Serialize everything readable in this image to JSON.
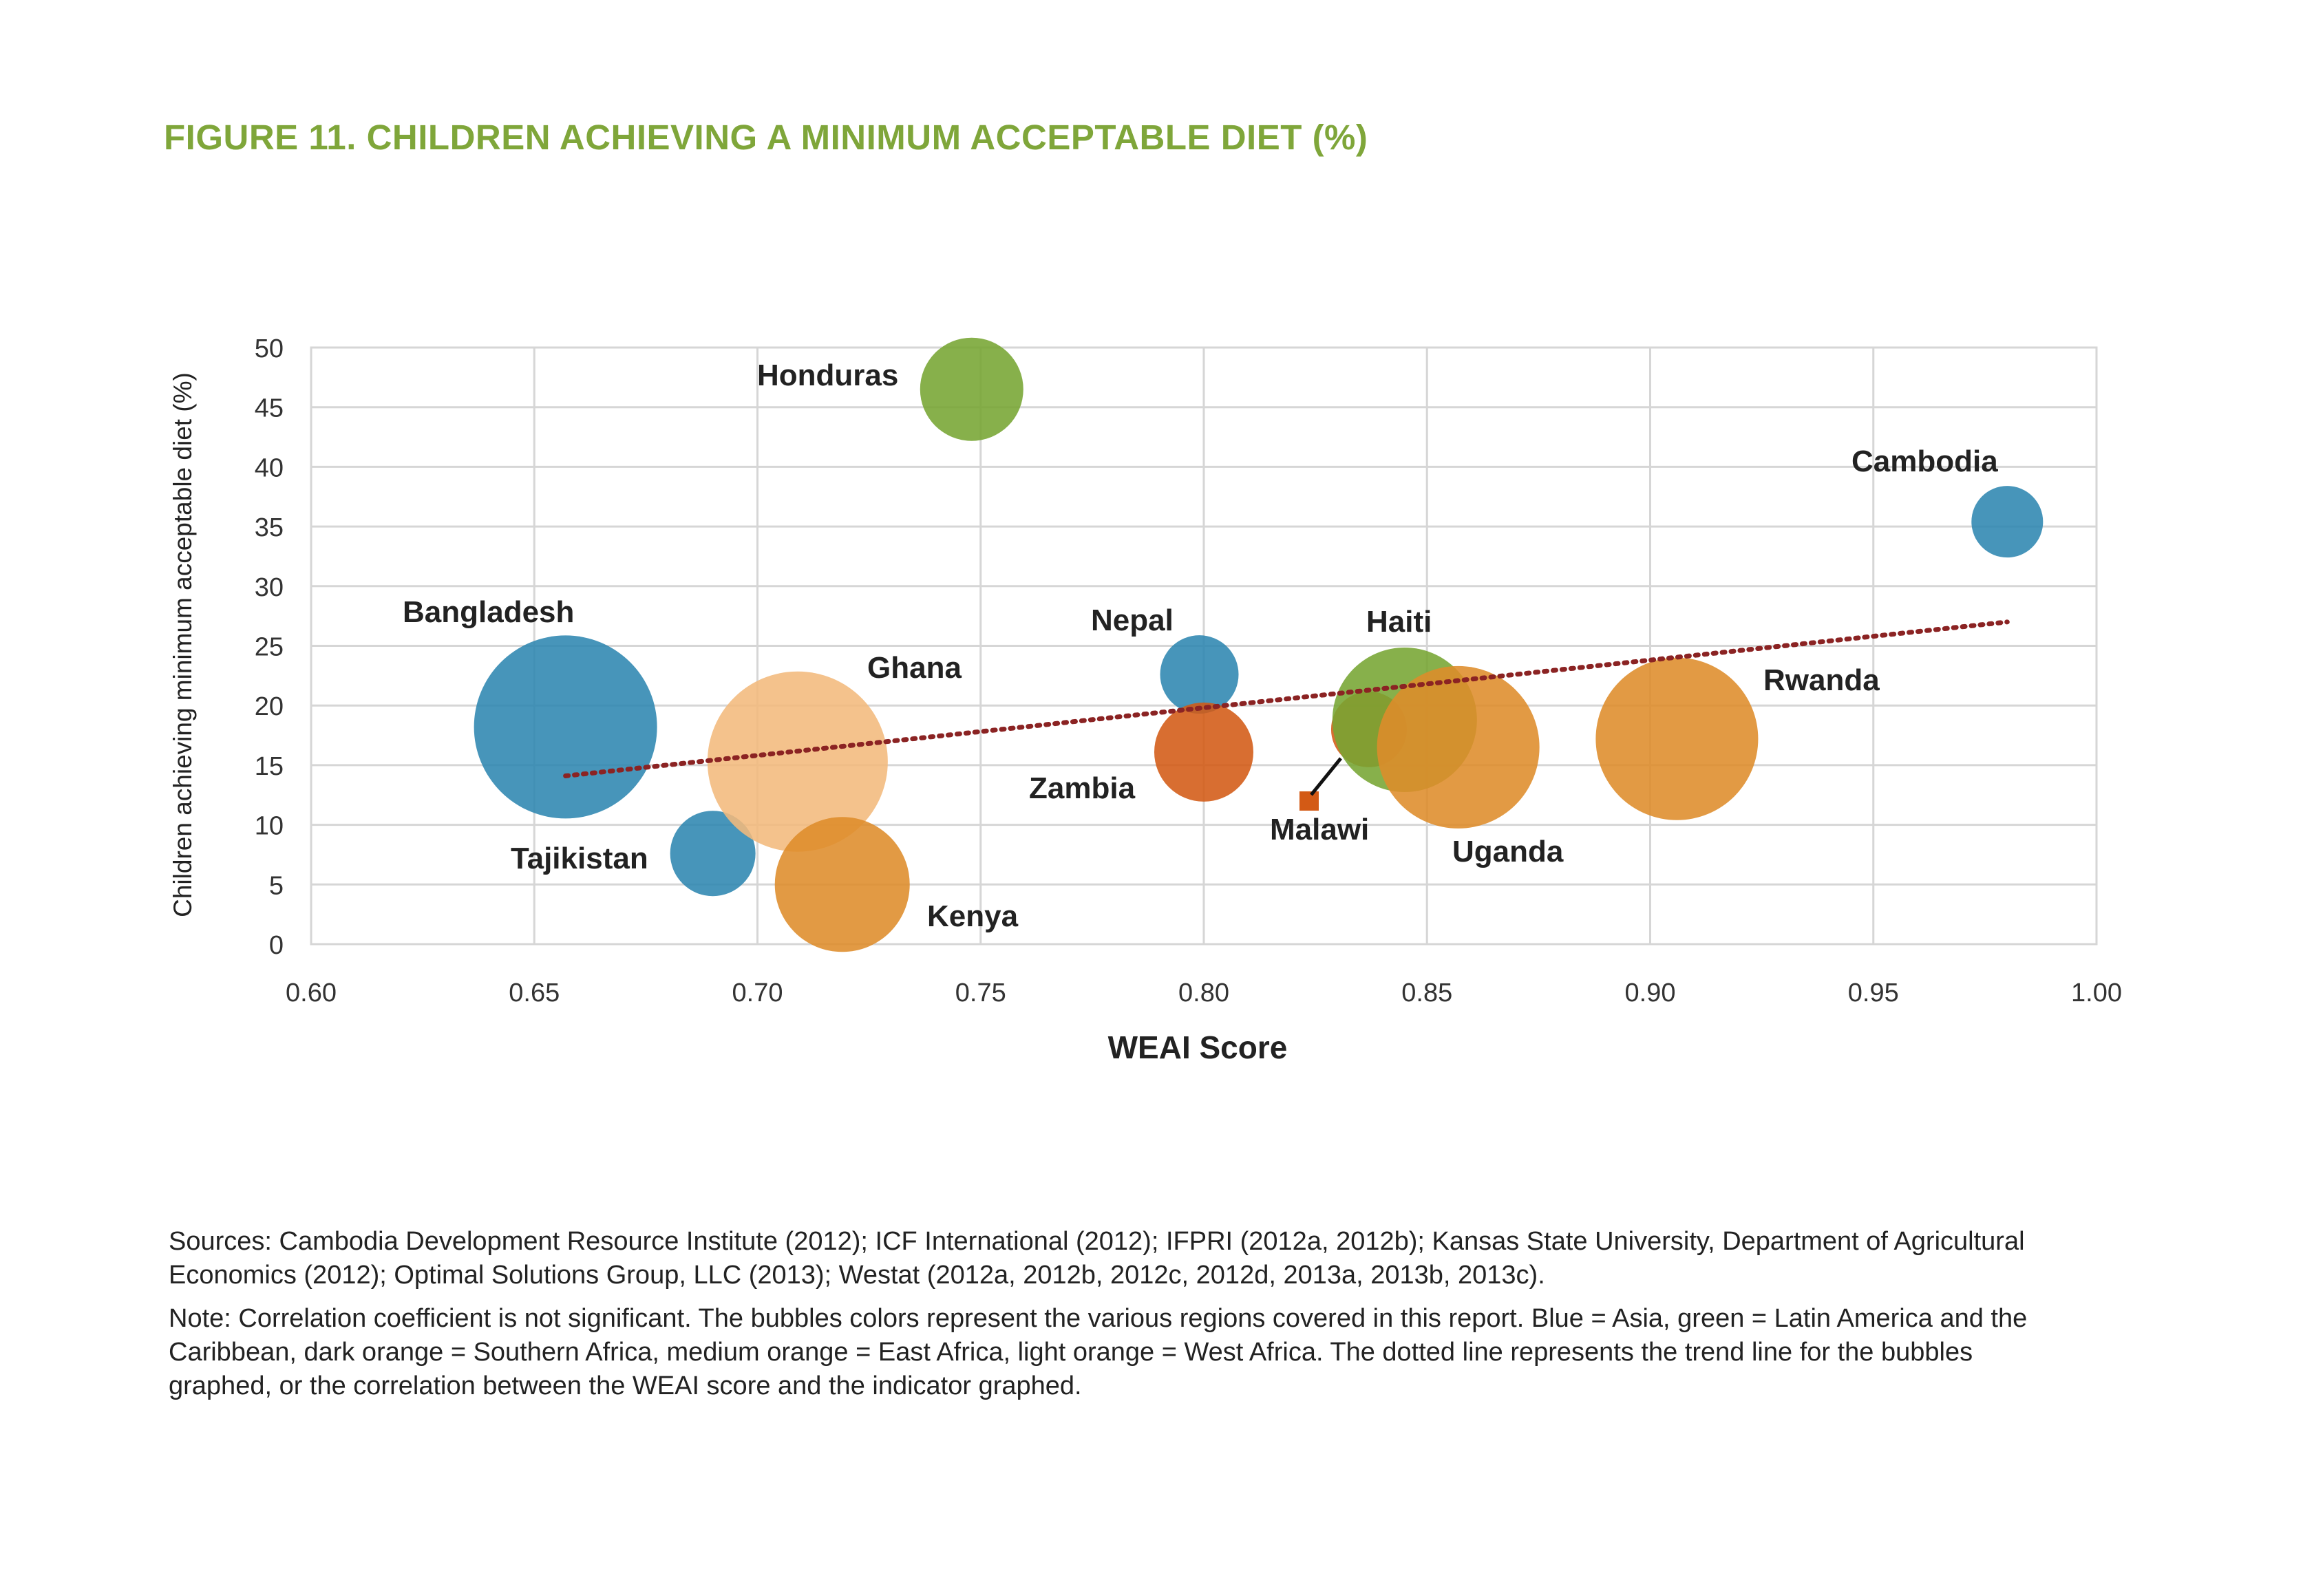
{
  "figure": {
    "title": "FIGURE 11. CHILDREN ACHIEVING A MINIMUM ACCEPTABLE DIET (%)"
  },
  "colors": {
    "title": "#7fa63a",
    "asia": "#2e86b1",
    "latin_america": "#76a532",
    "southern_africa": "#d35a15",
    "east_africa": "#de8c2a",
    "west_africa": "#f2b97c",
    "trend": "#8b2323",
    "grid": "#d6d6d6"
  },
  "chart_data": {
    "type": "scatter",
    "variant": "bubble",
    "xlabel": "WEAI Score",
    "ylabel": "Children achieving minimum acceptable diet (%)",
    "xlim": [
      0.6,
      1.0
    ],
    "ylim": [
      0,
      50
    ],
    "x_ticks": [
      "0.60",
      "0.65",
      "0.70",
      "0.75",
      "0.80",
      "0.85",
      "0.90",
      "0.95",
      "1.00"
    ],
    "y_ticks": [
      "0",
      "5",
      "10",
      "15",
      "20",
      "25",
      "30",
      "35",
      "40",
      "45",
      "50"
    ],
    "grid": true,
    "points": [
      {
        "label": "Bangladesh",
        "x": 0.657,
        "y": 18.2,
        "region": "asia"
      },
      {
        "label": "Tajikistan",
        "x": 0.69,
        "y": 7.6,
        "region": "asia"
      },
      {
        "label": "Ghana",
        "x": 0.709,
        "y": 15.3,
        "region": "west_africa"
      },
      {
        "label": "Kenya",
        "x": 0.719,
        "y": 5.0,
        "region": "east_africa"
      },
      {
        "label": "Honduras",
        "x": 0.748,
        "y": 46.5,
        "region": "latin_america"
      },
      {
        "label": "Nepal",
        "x": 0.799,
        "y": 22.6,
        "region": "asia"
      },
      {
        "label": "Zambia",
        "x": 0.8,
        "y": 16.1,
        "region": "southern_africa"
      },
      {
        "label": "Malawi",
        "x": 0.837,
        "y": 18.0,
        "region": "southern_africa"
      },
      {
        "label": "Haiti",
        "x": 0.845,
        "y": 18.8,
        "region": "latin_america"
      },
      {
        "label": "Uganda",
        "x": 0.857,
        "y": 16.5,
        "region": "east_africa"
      },
      {
        "label": "Rwanda",
        "x": 0.906,
        "y": 17.2,
        "region": "east_africa"
      },
      {
        "label": "Cambodia",
        "x": 0.98,
        "y": 35.4,
        "region": "asia"
      }
    ],
    "trend_line": {
      "x": [
        0.657,
        0.98
      ],
      "y": [
        14.1,
        27.0
      ]
    }
  },
  "sources": "Sources: Cambodia Development Resource Institute (2012); ICF International (2012); IFPRI (2012a, 2012b); Kansas State University, Department of Agricultural Economics (2012); Optimal Solutions Group, LLC (2013); Westat (2012a, 2012b, 2012c, 2012d, 2013a, 2013b, 2013c).",
  "note": "Note: Correlation coefficient is not significant. The bubbles colors represent the various regions covered in this report. Blue = Asia, green = Latin America and the Caribbean, dark orange = Southern Africa, medium orange = East Africa, light orange = West Africa. The dotted line represents the trend line for the bubbles graphed, or the correlation between the WEAI score and the indicator graphed."
}
